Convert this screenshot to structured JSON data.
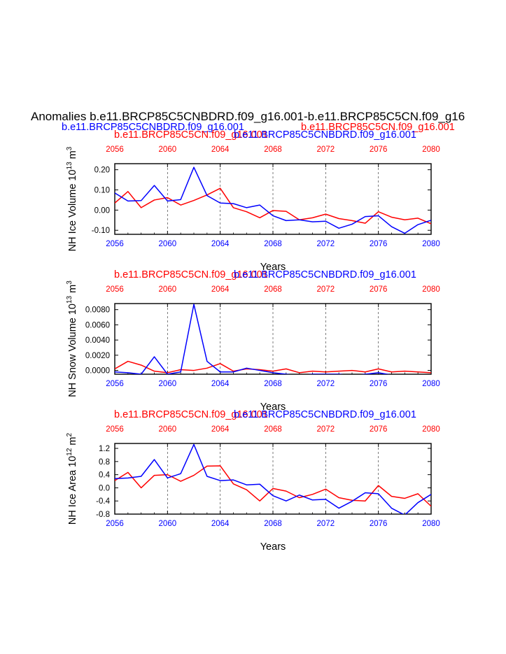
{
  "figure": {
    "main_title": "Anomalies b.e11.BRCP85C5CNBDRD.f09_g16.001-b.e11.BRCP85C5CN.f09_g16",
    "legend_top_left": "b.e11.BRCP85C5CNBDRD.f09_g16.001",
    "legend_top_right": "b.e11.BRCP85C5CN.f09_g16.001",
    "colors": {
      "series_a": "#ff0000",
      "series_b": "#0000ff",
      "axis": "#000000"
    }
  },
  "chart_data": [
    {
      "type": "line",
      "title_red": "b.e11.BRCP85C5CN.f09_g16.001",
      "title_blue": "b.e11.BRCP85C5CNBDRD.f09_g16.001",
      "ylabel": "NH Ice Volume 10",
      "ylabel_exp": "13",
      "ylabel_unit": " m",
      "ylabel_unit_exp": "3",
      "xlabel": "Years",
      "xlim": [
        2056,
        2080
      ],
      "ylim": [
        -0.12,
        0.23
      ],
      "yticks": [
        -0.1,
        0.0,
        0.1,
        0.2
      ],
      "ytick_labels": [
        "-0.10",
        "0.00",
        "0.10",
        "0.20"
      ],
      "xticks": [
        "2056",
        "2060",
        "2064",
        "2068",
        "2072",
        "2076",
        "2080"
      ],
      "x": [
        2056,
        2057,
        2058,
        2059,
        2060,
        2061,
        2062,
        2063,
        2064,
        2065,
        2066,
        2067,
        2068,
        2069,
        2070,
        2071,
        2072,
        2073,
        2074,
        2075,
        2076,
        2077,
        2078,
        2079,
        2080
      ],
      "series": [
        {
          "name": "b.e11.BRCP85C5CN.f09_g16.001",
          "color": "#ff0000",
          "values": [
            0.035,
            0.092,
            0.012,
            0.05,
            0.062,
            0.025,
            0.048,
            0.075,
            0.108,
            0.012,
            -0.008,
            -0.038,
            -0.002,
            -0.006,
            -0.048,
            -0.038,
            -0.02,
            -0.042,
            -0.052,
            -0.065,
            -0.008,
            -0.035,
            -0.048,
            -0.04,
            -0.068
          ]
        },
        {
          "name": "b.e11.BRCP85C5CNBDRD.f09_g16.001",
          "color": "#0000ff",
          "values": [
            0.085,
            0.045,
            0.047,
            0.122,
            0.045,
            0.052,
            0.212,
            0.072,
            0.035,
            0.032,
            0.012,
            0.025,
            -0.028,
            -0.052,
            -0.048,
            -0.058,
            -0.055,
            -0.09,
            -0.07,
            -0.032,
            -0.028,
            -0.082,
            -0.115,
            -0.072,
            -0.05
          ]
        }
      ]
    },
    {
      "type": "line",
      "title_red": "b.e11.BRCP85C5CN.f09_g16.001",
      "title_blue": "b.e11.BRCP85C5CNBDRD.f09_g16.001",
      "ylabel": "NH Snow Volume 10",
      "ylabel_exp": "13",
      "ylabel_unit": " m",
      "ylabel_unit_exp": "3",
      "xlabel": "Years",
      "xlim": [
        2056,
        2080
      ],
      "ylim": [
        -0.0005,
        0.0088
      ],
      "yticks": [
        0.0,
        0.002,
        0.004,
        0.006,
        0.008
      ],
      "ytick_labels": [
        "0.0000",
        "0.0020",
        "0.0040",
        "0.0060",
        "0.0080"
      ],
      "xticks": [
        "2056",
        "2060",
        "2064",
        "2068",
        "2072",
        "2076",
        "2080"
      ],
      "x": [
        2056,
        2057,
        2058,
        2059,
        2060,
        2061,
        2062,
        2063,
        2064,
        2065,
        2066,
        2067,
        2068,
        2069,
        2070,
        2071,
        2072,
        2073,
        2074,
        2075,
        2076,
        2077,
        2078,
        2079,
        2080
      ],
      "series": [
        {
          "name": "b.e11.BRCP85C5CN.f09_g16.001",
          "color": "#ff0000",
          "values": [
            0.0002,
            0.0012,
            0.0007,
            -0.0001,
            -0.0003,
            0.0001,
            0.0,
            0.0003,
            0.0009,
            -0.0001,
            0.0002,
            0.0001,
            -0.0001,
            0.0002,
            -0.0003,
            -0.0001,
            -0.0002,
            -0.0001,
            0.0,
            -0.0002,
            0.0002,
            -0.0002,
            -0.0001,
            -0.0002,
            -0.0003
          ]
        },
        {
          "name": "b.e11.BRCP85C5CNBDRD.f09_g16.001",
          "color": "#0000ff",
          "values": [
            -0.0002,
            -0.0003,
            -0.0005,
            0.0018,
            -0.0005,
            -0.0002,
            0.0087,
            0.0012,
            -0.0002,
            -0.0002,
            0.0003,
            0.0,
            -0.0003,
            -0.0005,
            -0.0007,
            -0.0005,
            -0.0005,
            -0.0005,
            -0.0007,
            -0.0005,
            -0.0003,
            -0.0006,
            -0.0007,
            -0.0007,
            -0.0006
          ]
        }
      ]
    },
    {
      "type": "line",
      "title_red": "b.e11.BRCP85C5CN.f09_g16.001",
      "title_blue": "b.e11.BRCP85C5CNBDRD.f09_g16.001",
      "ylabel": "NH Ice Area 10",
      "ylabel_exp": "12",
      "ylabel_unit": " m",
      "ylabel_unit_exp": "2",
      "xlabel": "Years",
      "xlim": [
        2056,
        2080
      ],
      "ylim": [
        -0.8,
        1.35
      ],
      "yticks": [
        -0.8,
        -0.4,
        0.0,
        0.4,
        0.8,
        1.2
      ],
      "ytick_labels": [
        "-0.8",
        "-0.4",
        "0.0",
        "0.4",
        "0.8",
        "1.2"
      ],
      "xticks": [
        "2056",
        "2060",
        "2064",
        "2068",
        "2072",
        "2076",
        "2080"
      ],
      "x": [
        2056,
        2057,
        2058,
        2059,
        2060,
        2061,
        2062,
        2063,
        2064,
        2065,
        2066,
        2067,
        2068,
        2069,
        2070,
        2071,
        2072,
        2073,
        2074,
        2075,
        2076,
        2077,
        2078,
        2079,
        2080
      ],
      "series": [
        {
          "name": "b.e11.BRCP85C5CN.f09_g16.001",
          "color": "#ff0000",
          "values": [
            0.22,
            0.47,
            0.0,
            0.38,
            0.4,
            0.2,
            0.38,
            0.66,
            0.67,
            0.12,
            -0.06,
            -0.4,
            -0.02,
            -0.1,
            -0.3,
            -0.2,
            -0.04,
            -0.3,
            -0.38,
            -0.4,
            0.07,
            -0.26,
            -0.32,
            -0.18,
            -0.56
          ]
        },
        {
          "name": "b.e11.BRCP85C5CNBDRD.f09_g16.001",
          "color": "#0000ff",
          "values": [
            0.28,
            0.3,
            0.35,
            0.86,
            0.3,
            0.43,
            1.32,
            0.35,
            0.22,
            0.24,
            0.09,
            0.11,
            -0.24,
            -0.4,
            -0.22,
            -0.37,
            -0.35,
            -0.62,
            -0.41,
            -0.15,
            -0.18,
            -0.62,
            -0.83,
            -0.45,
            -0.2
          ]
        }
      ]
    }
  ]
}
